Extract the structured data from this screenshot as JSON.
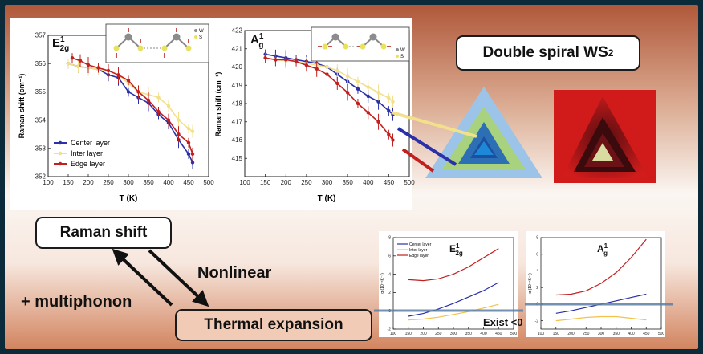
{
  "title": {
    "text": "Double spiral WS",
    "sub": "2"
  },
  "labels": {
    "raman_shift": "Raman shift",
    "thermal_expansion": "Thermal expansion",
    "nonlinear": "Nonlinear",
    "multiphonon": "+ multiphonon",
    "exist": "Exist <0"
  },
  "colors": {
    "center": "#2b2fa8",
    "inter": "#f2e08a",
    "edge": "#c21f1f",
    "triangle_outer": "#9cc4e8",
    "triangle_mid": "#a9d27f",
    "triangle_inner": "#1f6fbf",
    "zero_line": "#5b7fa6"
  },
  "raman_charts": [
    {
      "mode": "E",
      "sup": "1",
      "sub": "2g",
      "xlabel": "T (K)",
      "ylabel": "Raman shift (cm⁻¹)",
      "xlim": [
        100,
        500
      ],
      "ylim": [
        352,
        357
      ],
      "xticks": [
        100,
        150,
        200,
        250,
        300,
        350,
        400,
        450,
        500
      ],
      "yticks": [
        352,
        353,
        354,
        355,
        356,
        357
      ],
      "inset_legend": {
        "w": "W",
        "s": "S"
      },
      "series": [
        {
          "name": "Center layer",
          "color": "#2b2fa8",
          "x": [
            150,
            175,
            200,
            225,
            250,
            275,
            300,
            325,
            350,
            375,
            400,
            425,
            450,
            460
          ],
          "y": [
            356.0,
            355.9,
            355.85,
            355.8,
            355.6,
            355.5,
            355.0,
            354.8,
            354.6,
            354.2,
            353.9,
            353.3,
            352.8,
            352.5
          ]
        },
        {
          "name": "Inter layer",
          "color": "#f2e08a",
          "x": [
            150,
            175,
            200,
            225,
            250,
            275,
            300,
            325,
            350,
            375,
            400,
            425,
            450,
            460
          ],
          "y": [
            356.0,
            355.9,
            355.85,
            355.8,
            355.75,
            355.6,
            355.3,
            355.0,
            354.9,
            354.8,
            354.5,
            354.0,
            353.7,
            353.6
          ]
        },
        {
          "name": "Edge layer",
          "color": "#c21f1f",
          "x": [
            160,
            180,
            200,
            225,
            250,
            275,
            300,
            325,
            350,
            375,
            400,
            425,
            450,
            460
          ],
          "y": [
            356.2,
            356.1,
            355.95,
            355.85,
            355.75,
            355.6,
            355.4,
            355.0,
            354.7,
            354.3,
            354.0,
            353.5,
            353.2,
            352.8
          ]
        }
      ]
    },
    {
      "mode": "A",
      "sup": "1",
      "sub": "g",
      "xlabel": "T (K)",
      "ylabel": "Raman shift (cm⁻¹)",
      "xlim": [
        100,
        500
      ],
      "ylim": [
        414,
        422
      ],
      "xticks": [
        100,
        150,
        200,
        250,
        300,
        350,
        400,
        450,
        500
      ],
      "yticks": [
        415,
        416,
        417,
        418,
        419,
        420,
        421,
        422
      ],
      "inset_legend": {
        "w": "W",
        "s": "S"
      },
      "series": [
        {
          "name": "Center layer",
          "color": "#2b2fa8",
          "x": [
            150,
            175,
            200,
            225,
            250,
            275,
            300,
            325,
            350,
            375,
            400,
            425,
            450,
            460
          ],
          "y": [
            420.7,
            420.6,
            420.5,
            420.4,
            420.3,
            420.2,
            420.0,
            419.6,
            419.2,
            418.8,
            418.4,
            418.1,
            417.6,
            417.4
          ]
        },
        {
          "name": "Inter layer",
          "color": "#f2e08a",
          "x": [
            150,
            175,
            200,
            225,
            250,
            275,
            300,
            325,
            350,
            375,
            400,
            425,
            450,
            460
          ],
          "y": [
            420.5,
            420.4,
            420.35,
            420.3,
            420.2,
            420.1,
            420.0,
            419.8,
            419.5,
            419.2,
            418.9,
            418.6,
            418.3,
            418.1
          ]
        },
        {
          "name": "Edge layer",
          "color": "#c21f1f",
          "x": [
            150,
            175,
            200,
            225,
            250,
            275,
            300,
            325,
            350,
            375,
            400,
            425,
            450,
            460
          ],
          "y": [
            420.5,
            420.4,
            420.4,
            420.3,
            420.1,
            419.9,
            419.6,
            419.1,
            418.6,
            418.0,
            417.5,
            417.0,
            416.3,
            416.0
          ]
        }
      ]
    }
  ],
  "alpha_charts": [
    {
      "mode": "E",
      "sup": "1",
      "sub": "2g",
      "ylabel": "α (10⁻⁵K⁻¹)",
      "xlim": [
        100,
        500
      ],
      "ylim": [
        -2,
        8
      ],
      "xticks": [
        100,
        150,
        200,
        250,
        300,
        350,
        400,
        450,
        500
      ],
      "yticks": [
        -2,
        0,
        2,
        4,
        6,
        8
      ],
      "series": [
        {
          "name": "Center layer",
          "color": "#2b2fa8",
          "x": [
            150,
            200,
            250,
            300,
            350,
            400,
            450
          ],
          "y": [
            -0.6,
            -0.3,
            0.2,
            0.8,
            1.5,
            2.2,
            3.1
          ]
        },
        {
          "name": "Inter layer",
          "color": "#f2c24a",
          "x": [
            150,
            200,
            250,
            300,
            350,
            400,
            450
          ],
          "y": [
            -1.0,
            -0.9,
            -0.7,
            -0.4,
            -0.1,
            0.3,
            0.7
          ]
        },
        {
          "name": "Edge layer",
          "color": "#c21f1f",
          "x": [
            150,
            200,
            250,
            300,
            350,
            400,
            450
          ],
          "y": [
            3.4,
            3.3,
            3.5,
            4.0,
            4.8,
            5.8,
            6.8
          ]
        }
      ]
    },
    {
      "mode": "A",
      "sup": "1",
      "sub": "g",
      "ylabel": "α (10⁻⁵K⁻¹)",
      "xlim": [
        100,
        500
      ],
      "ylim": [
        -3,
        8
      ],
      "xticks": [
        100,
        150,
        200,
        250,
        300,
        350,
        400,
        450,
        500
      ],
      "yticks": [
        -2,
        0,
        2,
        4,
        6,
        8
      ],
      "series": [
        {
          "name": "Center layer",
          "color": "#2b2fa8",
          "x": [
            150,
            200,
            250,
            300,
            350,
            400,
            450
          ],
          "y": [
            -1.1,
            -0.8,
            -0.4,
            0.0,
            0.4,
            0.8,
            1.2
          ]
        },
        {
          "name": "Inter layer",
          "color": "#f2c24a",
          "x": [
            150,
            200,
            250,
            300,
            350,
            400,
            450
          ],
          "y": [
            -2.0,
            -1.8,
            -1.6,
            -1.5,
            -1.5,
            -1.7,
            -1.9
          ]
        },
        {
          "name": "Edge layer",
          "color": "#c21f1f",
          "x": [
            150,
            200,
            250,
            300,
            350,
            400,
            450
          ],
          "y": [
            1.1,
            1.2,
            1.6,
            2.5,
            3.8,
            5.6,
            7.8
          ]
        }
      ]
    }
  ]
}
